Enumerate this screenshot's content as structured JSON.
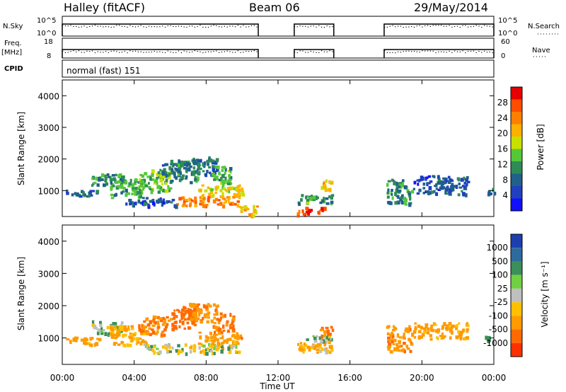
{
  "header": {
    "title": "Halley (fitACF)",
    "beam": "Beam 06",
    "date": "29/May/2014"
  },
  "panels": {
    "nsky_label": "N.Sky",
    "nsearch_label": "N.Search",
    "freq_label": "Freq.",
    "freq_unit": "[MHz]",
    "nave_label": "Nave",
    "cpid_label": "CPID",
    "cpid_value": "normal (fast) 151",
    "nsky_ticks": [
      "10^5",
      "10^0"
    ],
    "nsearch_ticks": [
      "10^5",
      "10^0"
    ],
    "freq_ticks": [
      "18",
      "8"
    ],
    "nave_ticks": [
      "60",
      "0"
    ]
  },
  "x_axis": {
    "label": "Time UT",
    "ticks": [
      "00:00",
      "04:00",
      "08:00",
      "12:00",
      "16:00",
      "20:00",
      "00:00"
    ]
  },
  "colorbars": {
    "power": {
      "label": "Power [dB]",
      "ticks": [
        "28",
        "24",
        "20",
        "16",
        "12",
        "8",
        "4"
      ],
      "colors": [
        "#e60000",
        "#ff4d00",
        "#ff8000",
        "#ffb000",
        "#c8e000",
        "#55c838",
        "#2e8b57",
        "#20608a",
        "#2040c0",
        "#1010ff"
      ]
    },
    "velocity": {
      "label": "Velocity [m s⁻¹]",
      "ticks": [
        "1000",
        "500",
        "100",
        "25",
        "-25",
        "-100",
        "-500",
        "-1000"
      ],
      "colors": [
        "#1c3fb0",
        "#2e6a9e",
        "#3a8f5a",
        "#70d040",
        "#bfbfbf",
        "#ffc000",
        "#ff9a00",
        "#ff6a00",
        "#ff3000"
      ]
    }
  },
  "chart_data": [
    {
      "type": "heatmap",
      "title": "",
      "ylabel": "Slant Range [km]",
      "xlabel": "",
      "ylim": [
        180,
        4500
      ],
      "yticks": [
        1000,
        2000,
        3000,
        4000
      ],
      "xlim": [
        0,
        24
      ],
      "quantity": "Power [dB]",
      "blobs": [
        {
          "t0": 0.2,
          "t1": 2.0,
          "r0": 820,
          "r1": 1050,
          "v": 10
        },
        {
          "t0": 1.6,
          "t1": 3.4,
          "r0": 1200,
          "r1": 1550,
          "v": 12
        },
        {
          "t0": 2.6,
          "t1": 4.6,
          "r0": 800,
          "r1": 1400,
          "v": 14
        },
        {
          "t0": 4.2,
          "t1": 6.0,
          "r0": 1000,
          "r1": 1700,
          "v": 16
        },
        {
          "t0": 5.5,
          "t1": 6.6,
          "r0": 1500,
          "r1": 2000,
          "v": 10
        },
        {
          "t0": 6.0,
          "t1": 7.5,
          "r0": 1300,
          "r1": 2000,
          "v": 12
        },
        {
          "t0": 7.0,
          "t1": 8.6,
          "r0": 1500,
          "r1": 2100,
          "v": 10
        },
        {
          "t0": 8.3,
          "t1": 9.5,
          "r0": 1200,
          "r1": 1800,
          "v": 14
        },
        {
          "t0": 6.3,
          "t1": 9.8,
          "r0": 550,
          "r1": 850,
          "v": 26
        },
        {
          "t0": 7.5,
          "t1": 10.0,
          "r0": 850,
          "r1": 1200,
          "v": 20
        },
        {
          "t0": 3.5,
          "t1": 6.5,
          "r0": 550,
          "r1": 800,
          "v": 8
        },
        {
          "t0": 9.8,
          "t1": 10.8,
          "r0": 250,
          "r1": 550,
          "v": 22
        },
        {
          "t0": 13.0,
          "t1": 15.0,
          "r0": 600,
          "r1": 900,
          "v": 14
        },
        {
          "t0": 13.0,
          "t1": 14.6,
          "r0": 250,
          "r1": 500,
          "v": 28
        },
        {
          "t0": 14.3,
          "t1": 15.0,
          "r0": 1050,
          "r1": 1400,
          "v": 22
        },
        {
          "t0": 18.0,
          "t1": 19.4,
          "r0": 600,
          "r1": 1400,
          "v": 12
        },
        {
          "t0": 19.5,
          "t1": 22.5,
          "r0": 900,
          "r1": 1500,
          "v": 8
        },
        {
          "t0": 23.5,
          "t1": 24.0,
          "r0": 900,
          "r1": 1100,
          "v": 10
        }
      ],
      "gaps": [
        [
          10.9,
          12.9
        ],
        [
          15.1,
          17.9
        ]
      ]
    },
    {
      "type": "heatmap",
      "title": "",
      "ylabel": "Slant Range [km]",
      "xlabel": "Time UT",
      "ylim": [
        180,
        4500
      ],
      "yticks": [
        1000,
        2000,
        3000,
        4000
      ],
      "xlim": [
        0,
        24
      ],
      "quantity": "Velocity [m s-1]",
      "blobs": [
        {
          "t0": 0.2,
          "t1": 2.0,
          "r0": 820,
          "r1": 1050,
          "v": -200
        },
        {
          "t0": 1.6,
          "t1": 3.4,
          "r0": 1150,
          "r1": 1550,
          "v": 60
        },
        {
          "t0": 2.6,
          "t1": 4.6,
          "r0": 800,
          "r1": 1400,
          "v": -150
        },
        {
          "t0": 4.2,
          "t1": 6.0,
          "r0": 1100,
          "r1": 1700,
          "v": -300
        },
        {
          "t0": 6.0,
          "t1": 7.5,
          "r0": 1300,
          "r1": 2000,
          "v": -400
        },
        {
          "t0": 7.0,
          "t1": 8.6,
          "r0": 1500,
          "r1": 2100,
          "v": -250
        },
        {
          "t0": 8.3,
          "t1": 9.5,
          "r0": 1200,
          "r1": 1800,
          "v": -350
        },
        {
          "t0": 4.5,
          "t1": 9.8,
          "r0": 550,
          "r1": 850,
          "v": 0
        },
        {
          "t0": 7.5,
          "t1": 10.0,
          "r0": 850,
          "r1": 1200,
          "v": -200
        },
        {
          "t0": 13.0,
          "t1": 15.0,
          "r0": 550,
          "r1": 1000,
          "v": -100
        },
        {
          "t0": 13.5,
          "t1": 15.0,
          "r0": 900,
          "r1": 1100,
          "v": 60
        },
        {
          "t0": 14.3,
          "t1": 15.0,
          "r0": 1100,
          "r1": 1400,
          "v": -300
        },
        {
          "t0": 18.0,
          "t1": 19.4,
          "r0": 600,
          "r1": 1400,
          "v": -250
        },
        {
          "t0": 19.5,
          "t1": 22.5,
          "r0": 1000,
          "r1": 1500,
          "v": -150
        },
        {
          "t0": 23.5,
          "t1": 24.0,
          "r0": 900,
          "r1": 1100,
          "v": 200
        }
      ],
      "gaps": [
        [
          10.9,
          12.9
        ],
        [
          15.1,
          17.9
        ]
      ]
    }
  ]
}
